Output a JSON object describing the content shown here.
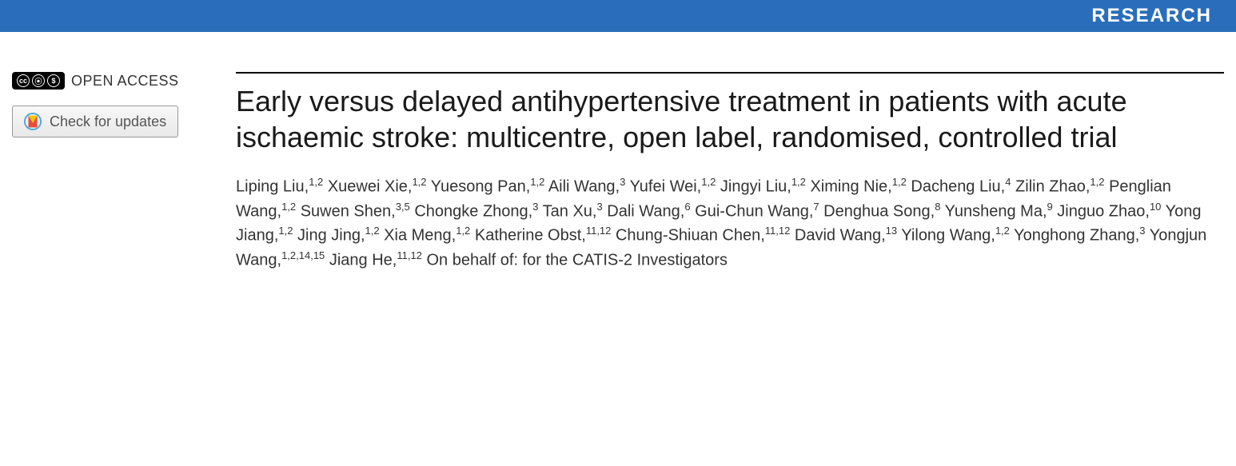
{
  "banner": {
    "label": "RESEARCH",
    "background_color": "#2a6ebb",
    "text_color": "#ffffff"
  },
  "sidebar": {
    "open_access_label": "OPEN ACCESS",
    "cc_parts": [
      "cc",
      "⦿",
      "$"
    ],
    "check_updates_label": "Check for updates"
  },
  "article": {
    "title": "Early versus delayed antihypertensive treatment in patients with acute ischaemic stroke: multicentre, open label, randomised, controlled trial",
    "authors": [
      {
        "name": "Liping Liu",
        "affil": "1,2"
      },
      {
        "name": "Xuewei Xie",
        "affil": "1,2"
      },
      {
        "name": "Yuesong Pan",
        "affil": "1,2"
      },
      {
        "name": "Aili Wang",
        "affil": "3"
      },
      {
        "name": "Yufei Wei",
        "affil": "1,2"
      },
      {
        "name": "Jingyi Liu",
        "affil": "1,2"
      },
      {
        "name": "Ximing Nie",
        "affil": "1,2"
      },
      {
        "name": "Dacheng Liu",
        "affil": "4"
      },
      {
        "name": "Zilin Zhao",
        "affil": "1,2"
      },
      {
        "name": "Penglian Wang",
        "affil": "1,2"
      },
      {
        "name": "Suwen Shen",
        "affil": "3,5"
      },
      {
        "name": "Chongke Zhong",
        "affil": "3"
      },
      {
        "name": "Tan Xu",
        "affil": "3"
      },
      {
        "name": "Dali Wang",
        "affil": "6"
      },
      {
        "name": "Gui-Chun Wang",
        "affil": "7"
      },
      {
        "name": "Denghua Song",
        "affil": "8"
      },
      {
        "name": "Yunsheng Ma",
        "affil": "9"
      },
      {
        "name": "Jinguo Zhao",
        "affil": "10"
      },
      {
        "name": "Yong Jiang",
        "affil": "1,2"
      },
      {
        "name": "Jing Jing",
        "affil": "1,2"
      },
      {
        "name": "Xia Meng",
        "affil": "1,2"
      },
      {
        "name": "Katherine Obst",
        "affil": "11,12"
      },
      {
        "name": "Chung-Shiuan Chen",
        "affil": "11,12"
      },
      {
        "name": "David Wang",
        "affil": "13"
      },
      {
        "name": "Yilong Wang",
        "affil": "1,2"
      },
      {
        "name": "Yonghong Zhang",
        "affil": "3"
      },
      {
        "name": "Yongjun Wang",
        "affil": "1,2,14,15"
      },
      {
        "name": "Jiang He",
        "affil": "11,12"
      }
    ],
    "behalf_text": "On behalf of: for the CATIS-2 Investigators"
  },
  "typography": {
    "title_fontsize": 36,
    "author_fontsize": 20,
    "banner_fontsize": 24
  }
}
